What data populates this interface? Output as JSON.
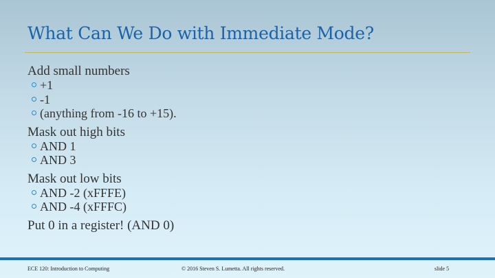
{
  "slide": {
    "title": "What Can We Do with Immediate Mode?",
    "sections": [
      {
        "heading": "Add small numbers",
        "bullets": [
          "+1",
          "-1",
          "(anything from -16 to +15)."
        ]
      },
      {
        "heading": "Mask out high bits",
        "bullets": [
          "AND 1",
          "AND 3"
        ]
      },
      {
        "heading": "Mask out low bits",
        "bullets": [
          "AND -2 (xFFFE)",
          "AND -4 (xFFFC)"
        ]
      },
      {
        "heading": "Put 0 in a register!  (AND 0)",
        "bullets": []
      }
    ]
  },
  "footer": {
    "course": "ECE 120: Introduction to Computing",
    "copyright": "© 2016 Steven S. Lumetta.  All rights reserved.",
    "slide_number": "slide 5"
  },
  "colors": {
    "title": "#1a63a8",
    "rule": "#c3b75a",
    "footer_bar": "#1c70b8",
    "bullet": "#2a8ac8"
  }
}
